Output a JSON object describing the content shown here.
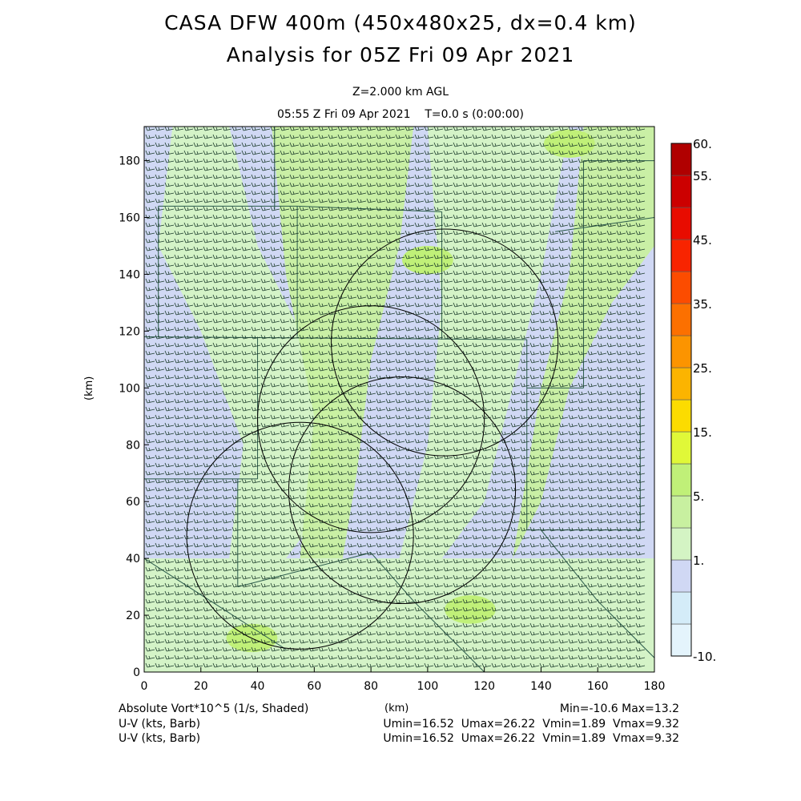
{
  "header": {
    "title_line1": "CASA DFW 400m (450x480x25, dx=0.4 km)",
    "title_line2": "Analysis for 05Z Fri 09 Apr 2021",
    "level": "Z=2.000 km AGL",
    "time": "05:55 Z Fri 09 Apr 2021    T=0.0 s (0:00:00)"
  },
  "axes": {
    "ylabel": "(km)",
    "xunit": "(km)"
  },
  "footer": {
    "field_label": "Absolute Vort*10^5 (1/s, Shaded)",
    "stats": "Min=-10.6 Max=13.2",
    "wind_label_1": "U-V (kts, Barb)",
    "wind_stats_1": "Umin=16.52  Umax=26.22  Vmin=1.89  Vmax=9.32",
    "wind_label_2": "U-V (kts, Barb)",
    "wind_stats_2": "Umin=16.52  Umax=26.22  Vmin=1.89  Vmax=9.32"
  },
  "chart_data": {
    "type": "heatmap",
    "title": "CASA DFW 400m (450x480x25, dx=0.4 km)",
    "xlabel": "(km)",
    "ylabel": "(km)",
    "xlim": [
      0,
      180
    ],
    "ylim": [
      0,
      192
    ],
    "x_ticks": [
      "0",
      "20",
      "40",
      "60",
      "80",
      "100",
      "120",
      "140",
      "160",
      "180"
    ],
    "y_ticks": [
      "0",
      "20",
      "40",
      "60",
      "80",
      "100",
      "120",
      "140",
      "160",
      "180"
    ],
    "colorbar": {
      "label_values": [
        "60.",
        "55.",
        "45.",
        "35.",
        "25.",
        "15.",
        "5.",
        "1.",
        "-10."
      ],
      "colors_bottom_to_top": [
        "#e4f4fc",
        "#d4ecf8",
        "#d0d8f4",
        "#d4f4c4",
        "#c8f0a0",
        "#c0f078",
        "#e0f838",
        "#fcdc00",
        "#fcb400",
        "#fc9400",
        "#fc7000",
        "#fc4c00",
        "#f82400",
        "#e80c00",
        "#cc0000",
        "#b00000"
      ]
    },
    "field_range": {
      "min": -10.6,
      "max": 13.2
    },
    "wind": {
      "u_min": 16.52,
      "u_max": 26.22,
      "v_min": 1.89,
      "v_max": 9.32,
      "units": "kts"
    },
    "radar_rings_km": [
      {
        "cx": 55,
        "cy": 48,
        "r": 40
      },
      {
        "cx": 80,
        "cy": 89,
        "r": 40
      },
      {
        "cx": 106,
        "cy": 116,
        "r": 40
      },
      {
        "cx": 91,
        "cy": 64,
        "r": 40
      }
    ],
    "grid": false
  }
}
